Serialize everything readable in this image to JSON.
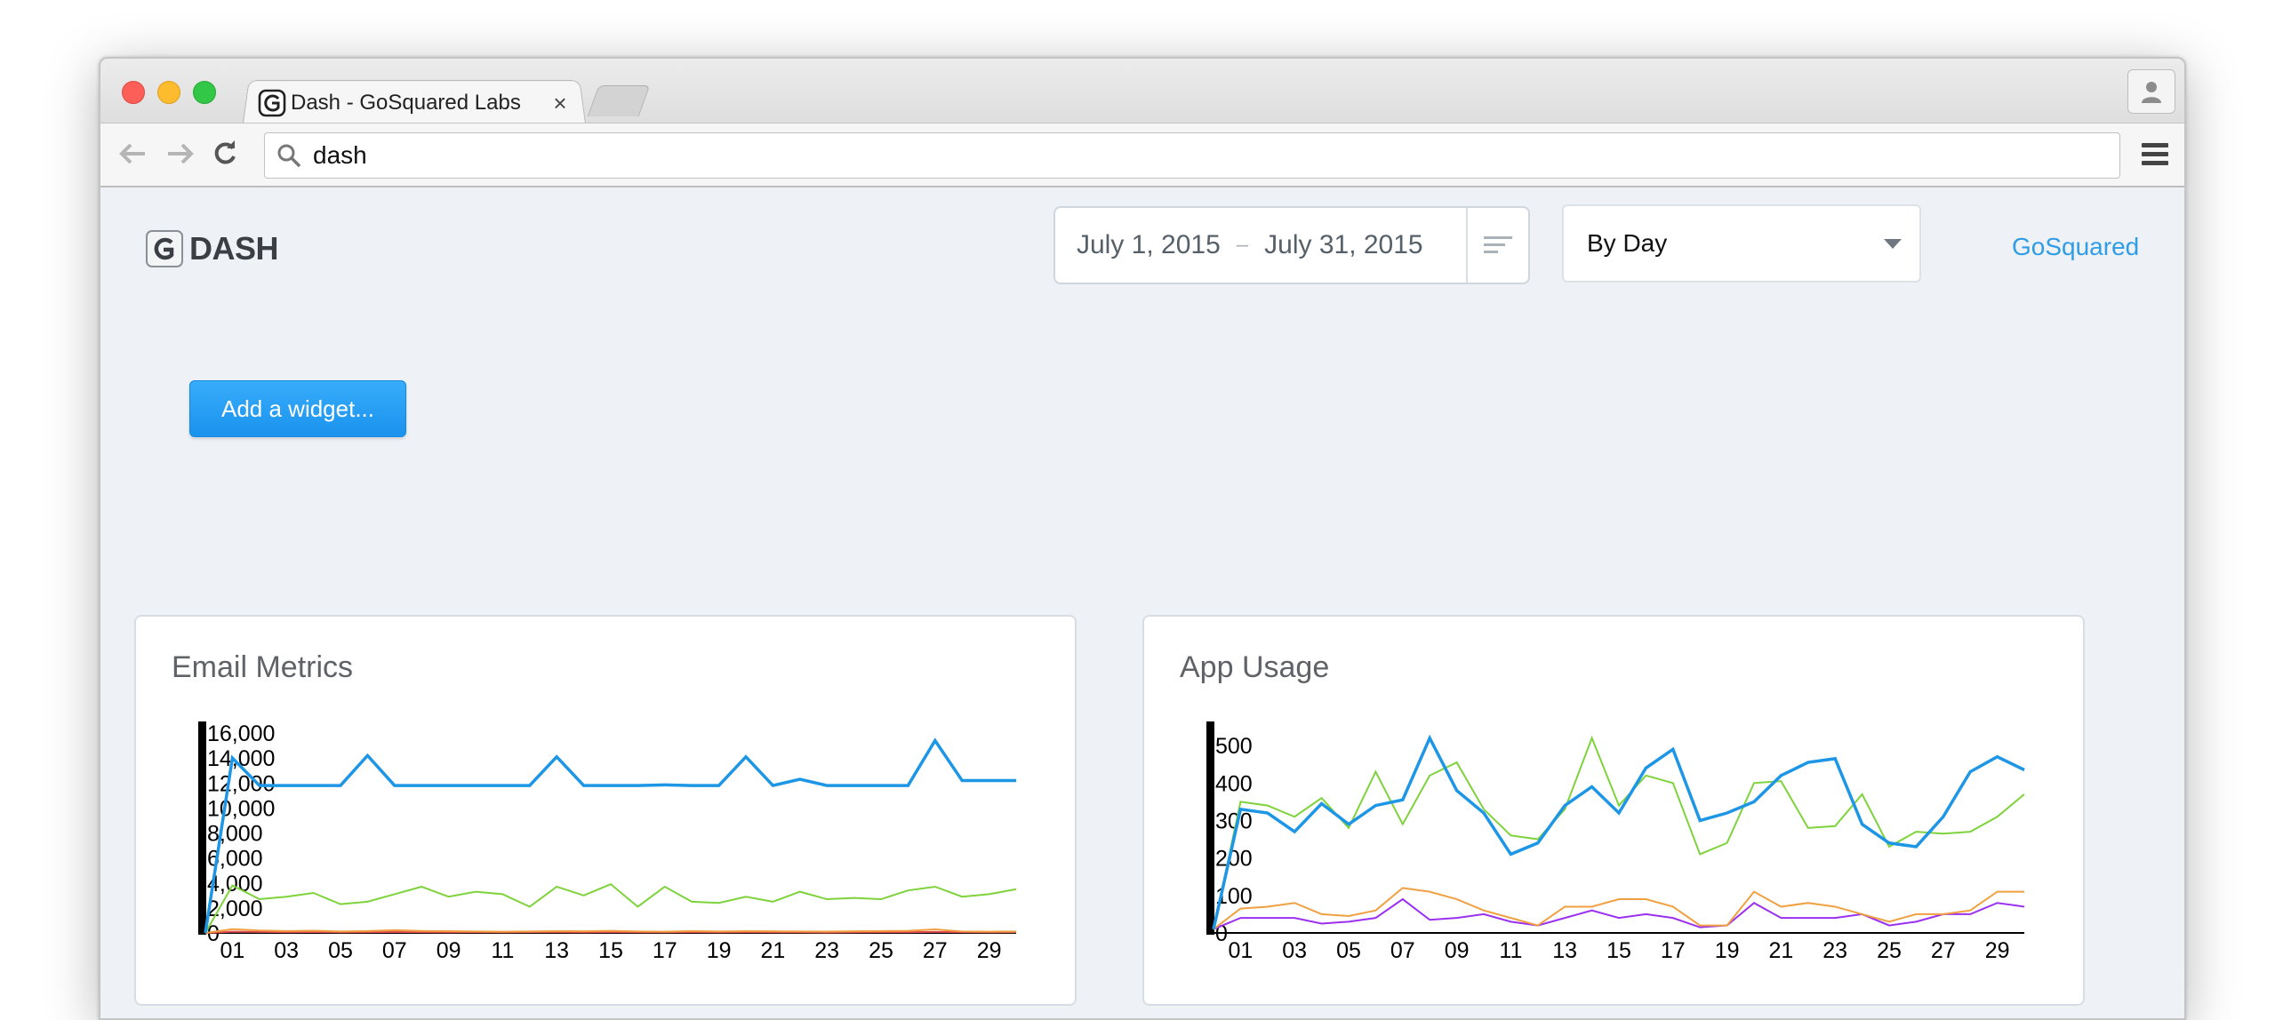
{
  "browser": {
    "tab_title": "Dash - GoSquared Labs",
    "tab_close": "×",
    "address": "dash"
  },
  "app": {
    "logo_text": "DASH",
    "date_from": "July 1, 2015",
    "date_sep": "–",
    "date_to": "July 31, 2015",
    "interval_value": "By Day",
    "top_link": "GoSquared",
    "add_widget_label": "Add a widget..."
  },
  "cards": [
    {
      "title": "Email Metrics"
    },
    {
      "title": "App Usage"
    }
  ],
  "chart_data": [
    {
      "type": "line",
      "title": "Email Metrics",
      "xlabel": "",
      "ylabel": "",
      "x": [
        1,
        2,
        3,
        4,
        5,
        6,
        7,
        8,
        9,
        10,
        11,
        12,
        13,
        14,
        15,
        16,
        17,
        18,
        19,
        20,
        21,
        22,
        23,
        24,
        25,
        26,
        27,
        28,
        29,
        30,
        31
      ],
      "x_ticks": [
        "01",
        "03",
        "05",
        "07",
        "09",
        "11",
        "13",
        "15",
        "17",
        "19",
        "21",
        "23",
        "25",
        "27",
        "29"
      ],
      "x_tick_values": [
        2,
        4,
        6,
        8,
        10,
        12,
        14,
        16,
        18,
        20,
        22,
        24,
        26,
        28,
        30
      ],
      "y_ticks": [
        "0",
        "2,000",
        "4,000",
        "6,000",
        "8,000",
        "10,000",
        "12,000",
        "14,000",
        "16,000"
      ],
      "y_tick_values": [
        0,
        2000,
        4000,
        6000,
        8000,
        10000,
        12000,
        14000,
        16000
      ],
      "ylim": [
        0,
        16500
      ],
      "series": [
        {
          "color": "#1e96e6",
          "width": 3.5,
          "values": [
            0,
            14000,
            11800,
            11800,
            11800,
            11800,
            14200,
            11800,
            11800,
            11800,
            11800,
            11800,
            11800,
            14100,
            11800,
            11800,
            11800,
            11850,
            11800,
            11800,
            14100,
            11800,
            12300,
            11800,
            11800,
            11800,
            11800,
            15400,
            12200,
            12200,
            12200
          ]
        },
        {
          "color": "#7ed33c",
          "width": 2,
          "values": [
            0,
            3800,
            2700,
            2900,
            3200,
            2300,
            2500,
            3100,
            3700,
            2900,
            3300,
            3100,
            2100,
            3700,
            3000,
            3900,
            2100,
            3700,
            2500,
            2400,
            2900,
            2500,
            3300,
            2700,
            2800,
            2700,
            3400,
            3700,
            2900,
            3100,
            3500
          ]
        },
        {
          "color": "#f0a040",
          "width": 2,
          "values": [
            0,
            300,
            200,
            150,
            180,
            120,
            150,
            220,
            160,
            140,
            120,
            100,
            120,
            150,
            130,
            170,
            120,
            100,
            150,
            120,
            140,
            130,
            120,
            110,
            130,
            150,
            170,
            280,
            120,
            100,
            120
          ]
        },
        {
          "color": "#e24c4c",
          "width": 2,
          "values": [
            0,
            100,
            80,
            60,
            70,
            50,
            60,
            70,
            60,
            50,
            60,
            50,
            60,
            60,
            50,
            60,
            50,
            50,
            60,
            50,
            60,
            50,
            50,
            40,
            50,
            60,
            60,
            80,
            60,
            50,
            60
          ]
        }
      ]
    },
    {
      "type": "line",
      "title": "App Usage",
      "xlabel": "",
      "ylabel": "",
      "x": [
        1,
        2,
        3,
        4,
        5,
        6,
        7,
        8,
        9,
        10,
        11,
        12,
        13,
        14,
        15,
        16,
        17,
        18,
        19,
        20,
        21,
        22,
        23,
        24,
        25,
        26,
        27,
        28,
        29,
        30,
        31
      ],
      "x_ticks": [
        "01",
        "03",
        "05",
        "07",
        "09",
        "11",
        "13",
        "15",
        "17",
        "19",
        "21",
        "23",
        "25",
        "27",
        "29"
      ],
      "x_tick_values": [
        2,
        4,
        6,
        8,
        10,
        12,
        14,
        16,
        18,
        20,
        22,
        24,
        26,
        28,
        30
      ],
      "y_ticks": [
        "0",
        "100",
        "200",
        "300",
        "400",
        "500"
      ],
      "y_tick_values": [
        0,
        100,
        200,
        300,
        400,
        500
      ],
      "ylim": [
        0,
        550
      ],
      "series": [
        {
          "color": "#1e96e6",
          "width": 3.5,
          "values": [
            10,
            330,
            320,
            270,
            345,
            290,
            340,
            355,
            520,
            380,
            320,
            210,
            240,
            340,
            390,
            320,
            440,
            490,
            300,
            320,
            350,
            420,
            455,
            465,
            290,
            240,
            230,
            310,
            430,
            470,
            435
          ]
        },
        {
          "color": "#7ed33c",
          "width": 2,
          "values": [
            10,
            350,
            340,
            310,
            360,
            280,
            430,
            290,
            420,
            455,
            330,
            260,
            250,
            330,
            520,
            340,
            420,
            400,
            210,
            240,
            400,
            405,
            280,
            285,
            370,
            230,
            270,
            265,
            270,
            310,
            370
          ]
        },
        {
          "color": "#f0a040",
          "width": 2,
          "values": [
            10,
            65,
            70,
            80,
            50,
            45,
            60,
            120,
            110,
            90,
            60,
            40,
            20,
            70,
            70,
            90,
            90,
            70,
            20,
            20,
            110,
            70,
            80,
            70,
            50,
            30,
            50,
            50,
            60,
            110,
            110
          ]
        },
        {
          "color": "#9b30f0",
          "width": 2,
          "values": [
            10,
            40,
            40,
            40,
            25,
            30,
            40,
            90,
            35,
            40,
            50,
            30,
            20,
            40,
            60,
            40,
            50,
            40,
            15,
            20,
            80,
            40,
            40,
            40,
            50,
            20,
            30,
            50,
            50,
            80,
            70
          ]
        }
      ]
    }
  ]
}
